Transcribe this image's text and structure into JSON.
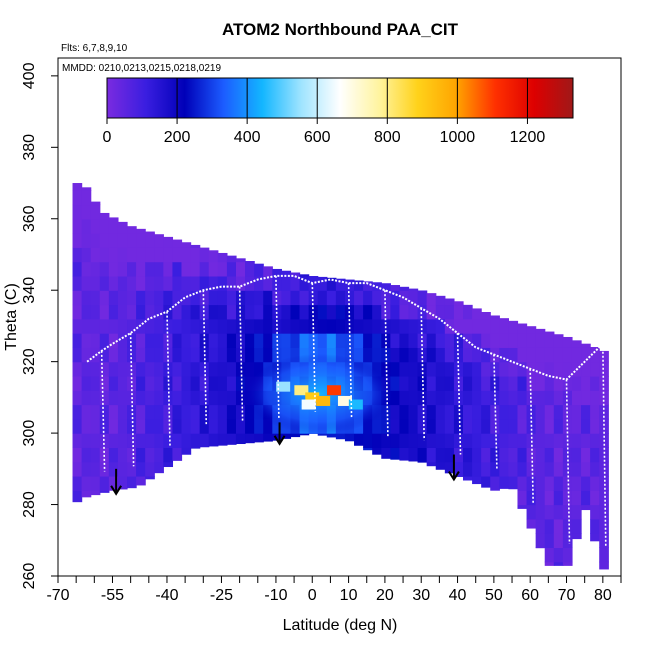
{
  "chart_data": {
    "type": "heatmap",
    "title": "ATOM2 Northbound PAA_CIT",
    "subtitle_flights": "Flts: 6,7,8,9,10",
    "subtitle_dates": "MMDD: 0210,0213,0215,0218,0219",
    "xlabel": "Latitude (deg N)",
    "ylabel": "Theta (C)",
    "xlim": [
      -70,
      85
    ],
    "ylim": [
      260,
      405
    ],
    "x_ticks": [
      -70,
      -55,
      -40,
      -25,
      -10,
      0,
      10,
      20,
      30,
      40,
      50,
      60,
      70,
      80
    ],
    "x_tick_labels": [
      "-70",
      "-55",
      "-40",
      "-25",
      "-10",
      "0",
      "10",
      "20",
      "30",
      "40",
      "50",
      "60",
      "70",
      "80"
    ],
    "y_ticks": [
      260,
      280,
      300,
      320,
      340,
      360,
      380,
      400
    ],
    "y_tick_labels": [
      "260",
      "280",
      "300",
      "320",
      "340",
      "360",
      "380",
      "400"
    ],
    "colorbar": {
      "min": 0,
      "max": 1330,
      "ticks": [
        0,
        200,
        400,
        600,
        800,
        1000,
        1200
      ],
      "tick_labels": [
        "0",
        "200",
        "400",
        "600",
        "800",
        "1000",
        "1200"
      ],
      "colors": [
        "#7a2be0",
        "#3a1ee0",
        "#0000b8",
        "#1c5cff",
        "#13b6ff",
        "#9fe4ff",
        "#ffffff",
        "#fff4a0",
        "#ffd21a",
        "#ffa400",
        "#ff3000",
        "#dd0000",
        "#a01818"
      ]
    },
    "domain_upper_theta": {
      "lat": [
        -66,
        -63,
        -58,
        -50,
        -40,
        -30,
        -20,
        -10,
        0,
        10,
        20,
        30,
        40,
        50,
        60,
        70,
        78,
        80
      ],
      "theta": [
        370,
        370,
        362,
        358,
        355,
        352,
        349,
        346,
        344,
        343,
        342,
        340,
        337,
        333,
        330,
        327,
        324,
        323
      ]
    },
    "domain_lower_theta": {
      "lat": [
        -66,
        -63,
        -55,
        -48,
        -32,
        -10,
        0,
        10,
        20,
        30,
        40,
        50,
        55,
        65,
        72,
        74,
        80
      ],
      "theta": [
        280,
        282,
        284,
        285,
        296,
        298,
        300,
        298,
        293,
        292,
        288,
        284,
        285,
        263,
        263,
        283,
        262
      ]
    },
    "high_value_patches": [
      {
        "lat": -8,
        "theta": 313,
        "value": 550
      },
      {
        "lat": -3,
        "theta": 312,
        "value": 800
      },
      {
        "lat": 0,
        "theta": 310,
        "value": 900
      },
      {
        "lat": 3,
        "theta": 309,
        "value": 950
      },
      {
        "lat": 6,
        "theta": 312,
        "value": 1100
      },
      {
        "lat": -1,
        "theta": 308,
        "value": 650
      },
      {
        "lat": 9,
        "theta": 309,
        "value": 700
      },
      {
        "lat": 12,
        "theta": 308,
        "value": 450
      }
    ],
    "arrows": [
      {
        "lat": -54,
        "theta_top": 290,
        "theta_bottom": 283
      },
      {
        "lat": -9,
        "theta_top": 303,
        "theta_bottom": 297
      },
      {
        "lat": 39,
        "theta_top": 294,
        "theta_bottom": 287
      }
    ],
    "flight_track_theta_upper": {
      "lat": [
        -62,
        -58,
        -55,
        -50,
        -45,
        -40,
        -35,
        -30,
        -25,
        -20,
        -15,
        -10,
        -5,
        0,
        5,
        10,
        15,
        20,
        25,
        30,
        35,
        40,
        45,
        50,
        55,
        60,
        65,
        70,
        75,
        80
      ],
      "theta": [
        320,
        323,
        325,
        328,
        332,
        334,
        338,
        340,
        341,
        341,
        343,
        344,
        344,
        342,
        343,
        342,
        342,
        340,
        338,
        335,
        332,
        328,
        324,
        322,
        320,
        318,
        316,
        315,
        320,
        325
      ]
    }
  }
}
